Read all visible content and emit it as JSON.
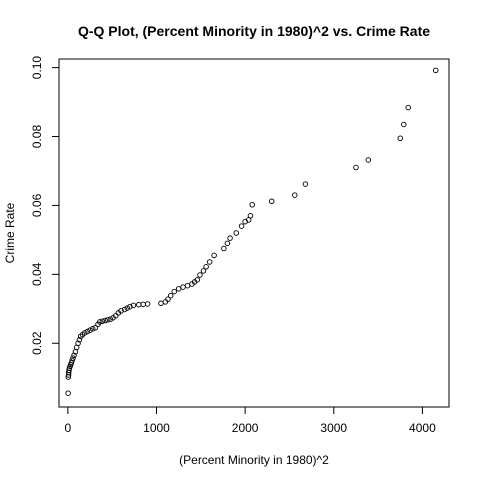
{
  "chart_data": {
    "type": "scatter",
    "title": "Q-Q Plot, (Percent Minority in 1980)^2 vs. Crime Rate",
    "xlabel": "(Percent Minority in 1980)^2",
    "ylabel": "Crime Rate",
    "xlim": [
      -100,
      4300
    ],
    "ylim": [
      0.0015,
      0.1025
    ],
    "xticks": [
      {
        "value": 0,
        "label": "0"
      },
      {
        "value": 1000,
        "label": "1000"
      },
      {
        "value": 2000,
        "label": "2000"
      },
      {
        "value": 3000,
        "label": "3000"
      },
      {
        "value": 4000,
        "label": "4000"
      }
    ],
    "yticks": [
      {
        "value": 0.02,
        "label": "0.02"
      },
      {
        "value": 0.04,
        "label": "0.04"
      },
      {
        "value": 0.06,
        "label": "0.06"
      },
      {
        "value": 0.08,
        "label": "0.08"
      },
      {
        "value": 0.1,
        "label": "0.10"
      }
    ],
    "grid": false,
    "marker": "open-circle",
    "color": "#000000",
    "points": [
      [
        3,
        0.0055
      ],
      [
        5,
        0.0102
      ],
      [
        8,
        0.0108
      ],
      [
        10,
        0.0115
      ],
      [
        13,
        0.0122
      ],
      [
        18,
        0.0128
      ],
      [
        25,
        0.0133
      ],
      [
        32,
        0.0138
      ],
      [
        40,
        0.0143
      ],
      [
        48,
        0.015
      ],
      [
        58,
        0.0157
      ],
      [
        70,
        0.0165
      ],
      [
        85,
        0.0175
      ],
      [
        100,
        0.0188
      ],
      [
        115,
        0.02
      ],
      [
        130,
        0.021
      ],
      [
        145,
        0.022
      ],
      [
        165,
        0.0225
      ],
      [
        190,
        0.023
      ],
      [
        220,
        0.0234
      ],
      [
        250,
        0.0238
      ],
      [
        280,
        0.0242
      ],
      [
        310,
        0.0245
      ],
      [
        340,
        0.0255
      ],
      [
        360,
        0.0262
      ],
      [
        390,
        0.0264
      ],
      [
        420,
        0.0266
      ],
      [
        450,
        0.0268
      ],
      [
        480,
        0.027
      ],
      [
        510,
        0.0274
      ],
      [
        540,
        0.028
      ],
      [
        570,
        0.0288
      ],
      [
        600,
        0.0294
      ],
      [
        640,
        0.0298
      ],
      [
        670,
        0.0302
      ],
      [
        700,
        0.0306
      ],
      [
        740,
        0.031
      ],
      [
        800,
        0.0312
      ],
      [
        850,
        0.0313
      ],
      [
        900,
        0.0314
      ],
      [
        1050,
        0.0316
      ],
      [
        1100,
        0.032
      ],
      [
        1130,
        0.0328
      ],
      [
        1160,
        0.0338
      ],
      [
        1200,
        0.035
      ],
      [
        1250,
        0.0358
      ],
      [
        1300,
        0.0363
      ],
      [
        1350,
        0.0367
      ],
      [
        1400,
        0.0372
      ],
      [
        1430,
        0.0378
      ],
      [
        1460,
        0.0384
      ],
      [
        1490,
        0.0398
      ],
      [
        1530,
        0.041
      ],
      [
        1560,
        0.0422
      ],
      [
        1600,
        0.0436
      ],
      [
        1650,
        0.0455
      ],
      [
        1760,
        0.0475
      ],
      [
        1800,
        0.049
      ],
      [
        1830,
        0.0505
      ],
      [
        1900,
        0.052
      ],
      [
        1960,
        0.054
      ],
      [
        2000,
        0.0553
      ],
      [
        2040,
        0.0558
      ],
      [
        2060,
        0.057
      ],
      [
        2080,
        0.0602
      ],
      [
        2300,
        0.0612
      ],
      [
        2560,
        0.063
      ],
      [
        2680,
        0.0662
      ],
      [
        3250,
        0.071
      ],
      [
        3390,
        0.0732
      ],
      [
        3750,
        0.0795
      ],
      [
        3790,
        0.0835
      ],
      [
        3840,
        0.0884
      ],
      [
        4150,
        0.0992
      ]
    ]
  }
}
